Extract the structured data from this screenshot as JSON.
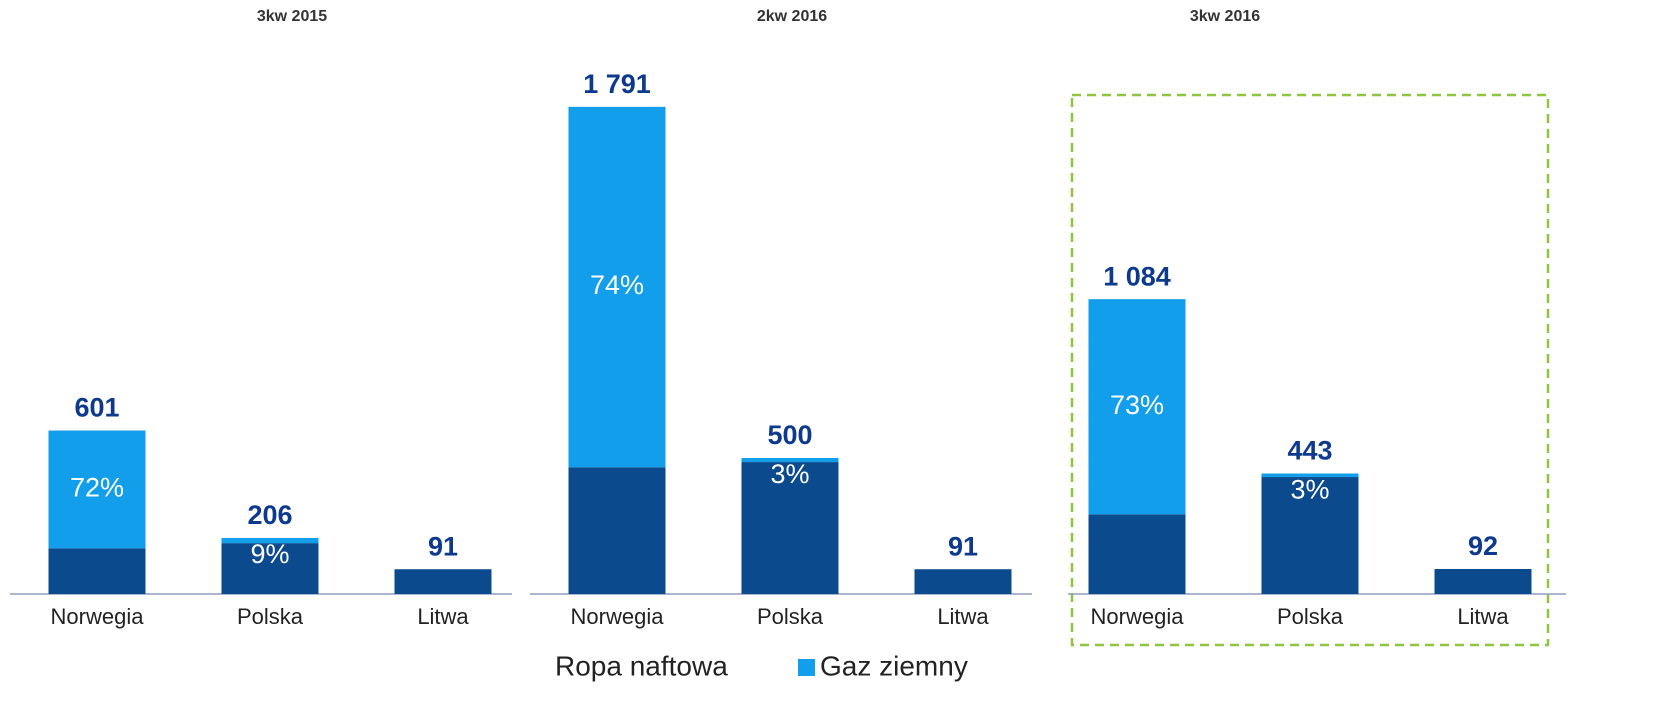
{
  "chart_data": [
    {
      "type": "bar",
      "stacked": true,
      "title": "3kw 2015",
      "categories": [
        "Norwegia",
        "Polska",
        "Litwa"
      ],
      "series": [
        {
          "name": "Ropa naftowa",
          "color": "#0b4a8d",
          "values": [
            168,
            187,
            91
          ]
        },
        {
          "name": "Gaz ziemny",
          "color": "#129eea",
          "values": [
            433,
            19,
            0
          ]
        }
      ],
      "totals": [
        601,
        206,
        91
      ],
      "shares": [
        {
          "value": 72,
          "label": "72%"
        },
        {
          "value": 9,
          "label": "9%"
        },
        null
      ],
      "ylim": [
        0,
        2000
      ]
    },
    {
      "type": "bar",
      "stacked": true,
      "title": "2kw 2016",
      "categories": [
        "Norwegia",
        "Polska",
        "Litwa"
      ],
      "series": [
        {
          "color": "#0b4a8d",
          "values": [
            466,
            485,
            91
          ]
        },
        {
          "color": "#129eea",
          "values": [
            1325,
            15,
            0
          ]
        }
      ],
      "totals": [
        {
          "value": 1791,
          "label": "1 791"
        },
        500,
        91
      ],
      "shares": [
        {
          "value": 74,
          "label": "74%"
        },
        {
          "value": 3,
          "label": "3%"
        },
        null
      ],
      "ylim": [
        0,
        2000
      ]
    },
    {
      "type": "bar",
      "stacked": true,
      "title": "3kw 2016",
      "categories": [
        "Norwegia",
        "Polska",
        "Litwa"
      ],
      "series": [
        {
          "color": "#0b4a8d",
          "values": [
            293,
            430,
            92
          ]
        },
        {
          "color": "#129eea",
          "values": [
            791,
            13,
            0
          ]
        }
      ],
      "totals": [
        {
          "value": 1084,
          "label": "1 084"
        },
        443,
        92
      ],
      "shares": [
        {
          "value": 73,
          "label": "73%"
        },
        {
          "value": 3,
          "label": "3%"
        },
        null
      ],
      "ylim": [
        0,
        2000
      ]
    }
  ]
}
